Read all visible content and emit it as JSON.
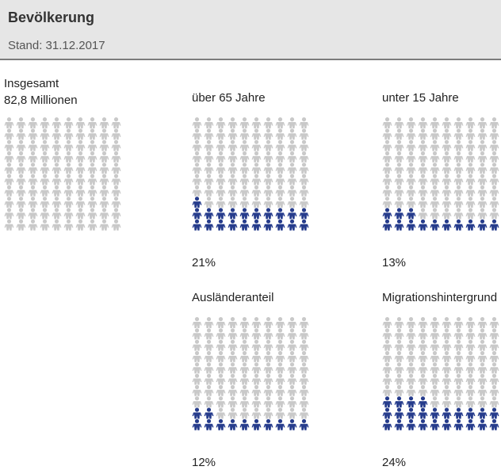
{
  "header": {
    "title": "Bevölkerung",
    "subtitle": "Stand: 31.12.2017"
  },
  "chart_data": {
    "type": "pictogram",
    "total_label": "Insgesamt",
    "total_value_label": "82,8 Millionen",
    "categories": [
      "über 65 Jahre",
      "unter 15 Jahre",
      "Ausländeranteil",
      "Migrationshintergrund"
    ],
    "values": [
      21,
      13,
      12,
      24
    ],
    "value_labels": [
      "21%",
      "13%",
      "12%",
      "24%"
    ],
    "color": "#263c8c",
    "base_color": "#c9c9c9"
  }
}
